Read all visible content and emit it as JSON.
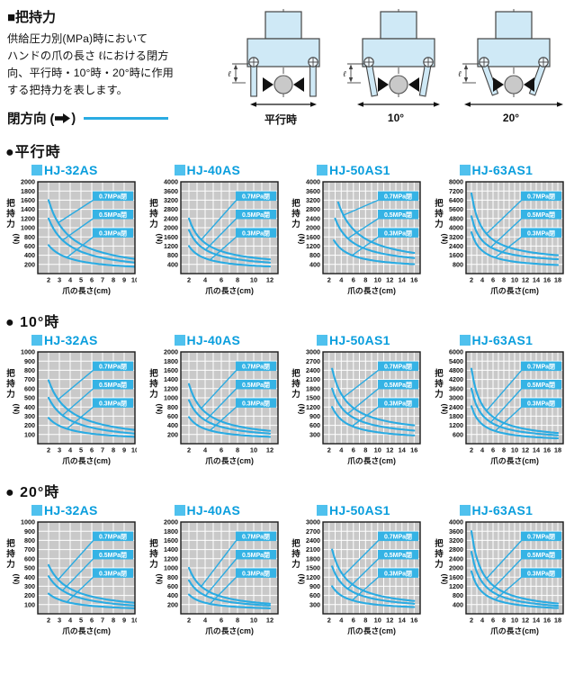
{
  "header": {
    "title": "■把持力",
    "description_lines": [
      "供給圧力別(MPa)時において",
      "ハンドの爪の長さ ℓにおける閉方",
      "向、平行時・10°時・20°時に作用",
      "する把持力を表します。"
    ],
    "legend_pre": "閉方向 (",
    "legend_post": ")",
    "legend_line_color": "#2aabe2"
  },
  "diagrams": [
    {
      "caption": "平行時",
      "dim_label": "ℓ",
      "angle_deg": 0
    },
    {
      "caption": "10°",
      "dim_label": "ℓ",
      "angle_deg": 10
    },
    {
      "caption": "20°",
      "dim_label": "ℓ",
      "angle_deg": 20
    }
  ],
  "sections": [
    "●平行時",
    "● 10°時",
    "● 20°時"
  ],
  "colors": {
    "curve": "#2aabe2",
    "title_text": "#0a9edd",
    "title_square": "#4fc1ee",
    "plot_background": "#c9c9c9",
    "gridline": "#ffffff",
    "label_box": "#35b3e5",
    "label_text": "#ffffff",
    "diagram_fill": "#cfe9f6"
  },
  "chart_data": [
    {
      "type": "line",
      "section": 0,
      "section_id": "parallel",
      "title": "HJ-32AS",
      "xlabel": "爪の長さ(cm)",
      "ylabel": "把持力(N)",
      "grid": true,
      "xticks": [
        2,
        3,
        4,
        5,
        6,
        7,
        8,
        9,
        10
      ],
      "xlim": [
        1,
        10
      ],
      "yticks": [
        200,
        400,
        600,
        800,
        1000,
        1200,
        1400,
        1600,
        1800,
        2000
      ],
      "ylim": [
        0,
        2000
      ],
      "series": [
        {
          "name": "0.7MPa閉",
          "points": [
            [
              2,
              1600
            ],
            [
              5,
              640
            ],
            [
              10,
              320
            ]
          ]
        },
        {
          "name": "0.5MPa閉",
          "points": [
            [
              2,
              1200
            ],
            [
              5,
              480
            ],
            [
              10,
              240
            ]
          ]
        },
        {
          "name": "0.3MPa閉",
          "points": [
            [
              2,
              620
            ],
            [
              5,
              268
            ],
            [
              10,
              150
            ]
          ]
        }
      ]
    },
    {
      "type": "line",
      "section": 0,
      "section_id": "parallel",
      "title": "HJ-40AS",
      "xlabel": "爪の長さ(cm)",
      "ylabel": "把持力(N)",
      "grid": true,
      "xticks": [
        2,
        4,
        6,
        8,
        10,
        12
      ],
      "xlim": [
        1,
        13
      ],
      "yticks": [
        400,
        800,
        1200,
        1600,
        2000,
        2400,
        2800,
        3200,
        3600,
        4000
      ],
      "ylim": [
        0,
        4000
      ],
      "series": [
        {
          "name": "0.7MPa閉",
          "points": [
            [
              2,
              2400
            ],
            [
              6,
              975
            ],
            [
              12,
              620
            ]
          ]
        },
        {
          "name": "0.5MPa閉",
          "points": [
            [
              2,
              1900
            ],
            [
              6,
              765
            ],
            [
              12,
              480
            ]
          ]
        },
        {
          "name": "0.3MPa閉",
          "points": [
            [
              2,
              1200
            ],
            [
              6,
              490
            ],
            [
              12,
              310
            ]
          ]
        }
      ]
    },
    {
      "type": "line",
      "section": 0,
      "section_id": "parallel",
      "title": "HJ-50AS1",
      "xlabel": "爪の長さ(cm)",
      "ylabel": "把持力(N)",
      "grid": true,
      "xticks": [
        2,
        4,
        6,
        8,
        10,
        12,
        14,
        16
      ],
      "xlim": [
        1,
        17
      ],
      "yticks": [
        400,
        800,
        1200,
        1600,
        2000,
        2400,
        2800,
        3200,
        3600,
        4000
      ],
      "ylim": [
        0,
        4000
      ],
      "series": [
        {
          "name": "0.7MPa閉",
          "points": [
            [
              3.5,
              3100
            ],
            [
              8,
              1515
            ],
            [
              16,
              900
            ]
          ]
        },
        {
          "name": "0.5MPa閉",
          "points": [
            [
              3,
              2400
            ],
            [
              8,
              1075
            ],
            [
              16,
              680
            ]
          ]
        },
        {
          "name": "0.3MPa閉",
          "points": [
            [
              2.8,
              1450
            ],
            [
              8,
              630
            ],
            [
              16,
              410
            ]
          ]
        }
      ]
    },
    {
      "type": "line",
      "section": 0,
      "section_id": "parallel",
      "title": "HJ-63AS1",
      "xlabel": "爪の長さ(cm)",
      "ylabel": "把持力(N)",
      "grid": true,
      "xticks": [
        2,
        4,
        6,
        8,
        10,
        12,
        14,
        16,
        18
      ],
      "xlim": [
        1,
        19
      ],
      "yticks": [
        800,
        1600,
        2400,
        3200,
        4000,
        4800,
        5600,
        6400,
        7200,
        8000
      ],
      "ylim": [
        0,
        8000
      ],
      "series": [
        {
          "name": "0.7MPa閉",
          "points": [
            [
              2,
              7000
            ],
            [
              8,
              2445
            ],
            [
              18,
              1600
            ]
          ]
        },
        {
          "name": "0.5MPa閉",
          "points": [
            [
              2,
              5000
            ],
            [
              8,
              1835
            ],
            [
              18,
              1250
            ]
          ]
        },
        {
          "name": "0.3MPa閉",
          "points": [
            [
              2,
              3600
            ],
            [
              8,
              1195
            ],
            [
              18,
              750
            ]
          ]
        }
      ]
    },
    {
      "type": "line",
      "section": 1,
      "section_id": "10deg",
      "title": "HJ-32AS",
      "xlabel": "爪の長さ(cm)",
      "ylabel": "把持力(N)",
      "grid": true,
      "xticks": [
        2,
        3,
        4,
        5,
        6,
        7,
        8,
        9,
        10
      ],
      "xlim": [
        1,
        10
      ],
      "yticks": [
        100,
        200,
        300,
        400,
        500,
        600,
        700,
        800,
        900,
        1000
      ],
      "ylim": [
        0,
        1000
      ],
      "series": [
        {
          "name": "0.7MPa閉",
          "points": [
            [
              2,
              690
            ],
            [
              5,
              285
            ],
            [
              10,
              150
            ]
          ]
        },
        {
          "name": "0.5MPa閉",
          "points": [
            [
              2,
              500
            ],
            [
              5,
              208
            ],
            [
              10,
              110
            ]
          ]
        },
        {
          "name": "0.3MPa閉",
          "points": [
            [
              2,
              280
            ],
            [
              5,
              127
            ],
            [
              10,
              75
            ]
          ]
        }
      ]
    },
    {
      "type": "line",
      "section": 1,
      "section_id": "10deg",
      "title": "HJ-40AS",
      "xlabel": "爪の長さ(cm)",
      "ylabel": "把持力(N)",
      "grid": true,
      "xticks": [
        2,
        4,
        6,
        8,
        10,
        12
      ],
      "xlim": [
        1,
        13
      ],
      "yticks": [
        200,
        400,
        600,
        800,
        1000,
        1200,
        1400,
        1600,
        1800,
        2000
      ],
      "ylim": [
        0,
        2000
      ],
      "series": [
        {
          "name": "0.7MPa閉",
          "points": [
            [
              2,
              1300
            ],
            [
              6,
              484
            ],
            [
              12,
              280
            ]
          ]
        },
        {
          "name": "0.5MPa閉",
          "points": [
            [
              2,
              950
            ],
            [
              6,
              366
            ],
            [
              12,
              220
            ]
          ]
        },
        {
          "name": "0.3MPa閉",
          "points": [
            [
              2,
              580
            ],
            [
              6,
              236
            ],
            [
              12,
              150
            ]
          ]
        }
      ]
    },
    {
      "type": "line",
      "section": 1,
      "section_id": "10deg",
      "title": "HJ-50AS1",
      "xlabel": "爪の長さ(cm)",
      "ylabel": "把持力(N)",
      "grid": true,
      "xticks": [
        2,
        4,
        6,
        8,
        10,
        12,
        14,
        16
      ],
      "xlim": [
        1,
        17
      ],
      "yticks": [
        300,
        600,
        900,
        1200,
        1500,
        1800,
        2100,
        2400,
        2700,
        3000
      ],
      "ylim": [
        0,
        3000
      ],
      "series": [
        {
          "name": "0.7MPa閉",
          "points": [
            [
              2.5,
              2450
            ],
            [
              8,
              940
            ],
            [
              16,
              600
            ]
          ]
        },
        {
          "name": "0.5MPa閉",
          "points": [
            [
              2.5,
              1800
            ],
            [
              8,
              685
            ],
            [
              16,
              430
            ]
          ]
        },
        {
          "name": "0.3MPa閉",
          "points": [
            [
              2.5,
              1200
            ],
            [
              8,
              440
            ],
            [
              16,
              270
            ]
          ]
        }
      ]
    },
    {
      "type": "line",
      "section": 1,
      "section_id": "10deg",
      "title": "HJ-63AS1",
      "xlabel": "爪の長さ(cm)",
      "ylabel": "把持力(N)",
      "grid": true,
      "xticks": [
        2,
        4,
        6,
        8,
        10,
        12,
        14,
        16,
        18
      ],
      "xlim": [
        1,
        19
      ],
      "yticks": [
        600,
        1200,
        1800,
        2400,
        3000,
        3600,
        4200,
        4800,
        5400,
        6000
      ],
      "ylim": [
        0,
        6000
      ],
      "series": [
        {
          "name": "0.7MPa閉",
          "points": [
            [
              2,
              4900
            ],
            [
              8,
              1355
            ],
            [
              18,
              700
            ]
          ]
        },
        {
          "name": "0.5MPa閉",
          "points": [
            [
              2,
              3600
            ],
            [
              8,
              1025
            ],
            [
              18,
              550
            ]
          ]
        },
        {
          "name": "0.3MPa閉",
          "points": [
            [
              2,
              2450
            ],
            [
              8,
              680
            ],
            [
              18,
              350
            ]
          ]
        }
      ]
    },
    {
      "type": "line",
      "section": 2,
      "section_id": "20deg",
      "title": "HJ-32AS",
      "xlabel": "爪の長さ(cm)",
      "ylabel": "把持力(N)",
      "grid": true,
      "xticks": [
        2,
        3,
        4,
        5,
        6,
        7,
        8,
        9,
        10
      ],
      "xlim": [
        1,
        10
      ],
      "yticks": [
        100,
        200,
        300,
        400,
        500,
        600,
        700,
        800,
        900,
        1000
      ],
      "ylim": [
        0,
        1000
      ],
      "series": [
        {
          "name": "0.7MPa閉",
          "points": [
            [
              2,
              530
            ],
            [
              5,
              222
            ],
            [
              10,
              120
            ]
          ]
        },
        {
          "name": "0.5MPa閉",
          "points": [
            [
              2,
              410
            ],
            [
              5,
              170
            ],
            [
              10,
              90
            ]
          ]
        },
        {
          "name": "0.3MPa閉",
          "points": [
            [
              2,
              220
            ],
            [
              5,
              100
            ],
            [
              10,
              60
            ]
          ]
        }
      ]
    },
    {
      "type": "line",
      "section": 2,
      "section_id": "20deg",
      "title": "HJ-40AS",
      "xlabel": "爪の長さ(cm)",
      "ylabel": "把持力(N)",
      "grid": true,
      "xticks": [
        2,
        4,
        6,
        8,
        10,
        12
      ],
      "xlim": [
        1,
        13
      ],
      "yticks": [
        200,
        400,
        600,
        800,
        1000,
        1200,
        1400,
        1600,
        1800,
        2000
      ],
      "ylim": [
        0,
        2000
      ],
      "series": [
        {
          "name": "0.7MPa閉",
          "points": [
            [
              2,
              1000
            ],
            [
              6,
              376
            ],
            [
              12,
              220
            ]
          ]
        },
        {
          "name": "0.5MPa閉",
          "points": [
            [
              2,
              730
            ],
            [
              6,
              290
            ],
            [
              12,
              180
            ]
          ]
        },
        {
          "name": "0.3MPa閉",
          "points": [
            [
              2,
              420
            ],
            [
              6,
              180
            ],
            [
              12,
              120
            ]
          ]
        }
      ]
    },
    {
      "type": "line",
      "section": 2,
      "section_id": "20deg",
      "title": "HJ-50AS1",
      "xlabel": "爪の長さ(cm)",
      "ylabel": "把持力(N)",
      "grid": true,
      "xticks": [
        2,
        4,
        6,
        8,
        10,
        12,
        14,
        16
      ],
      "xlim": [
        1,
        17
      ],
      "yticks": [
        300,
        600,
        900,
        1200,
        1500,
        1800,
        2100,
        2400,
        2700,
        3000
      ],
      "ylim": [
        0,
        3000
      ],
      "series": [
        {
          "name": "0.7MPa閉",
          "points": [
            [
              2.5,
              2100
            ],
            [
              8,
              730
            ],
            [
              16,
              420
            ]
          ]
        },
        {
          "name": "0.5MPa閉",
          "points": [
            [
              2.5,
              1550
            ],
            [
              8,
              555
            ],
            [
              16,
              330
            ]
          ]
        },
        {
          "name": "0.3MPa閉",
          "points": [
            [
              2.5,
              900
            ],
            [
              8,
              345
            ],
            [
              16,
              220
            ]
          ]
        }
      ]
    },
    {
      "type": "line",
      "section": 2,
      "section_id": "20deg",
      "title": "HJ-63AS1",
      "xlabel": "爪の長さ(cm)",
      "ylabel": "把持力(N)",
      "grid": true,
      "xticks": [
        2,
        4,
        6,
        8,
        10,
        12,
        14,
        16,
        18
      ],
      "xlim": [
        1,
        19
      ],
      "yticks": [
        400,
        800,
        1200,
        1600,
        2000,
        2400,
        2800,
        3200,
        3600,
        4000
      ],
      "ylim": [
        0,
        4000
      ],
      "series": [
        {
          "name": "0.7MPa閉",
          "points": [
            [
              2,
              3600
            ],
            [
              8,
              940
            ],
            [
              18,
              450
            ]
          ]
        },
        {
          "name": "0.5MPa閉",
          "points": [
            [
              2,
              2700
            ],
            [
              8,
              715
            ],
            [
              18,
              350
            ]
          ]
        },
        {
          "name": "0.3MPa閉",
          "points": [
            [
              2,
              1850
            ],
            [
              8,
              500
            ],
            [
              18,
              250
            ]
          ]
        }
      ]
    }
  ]
}
